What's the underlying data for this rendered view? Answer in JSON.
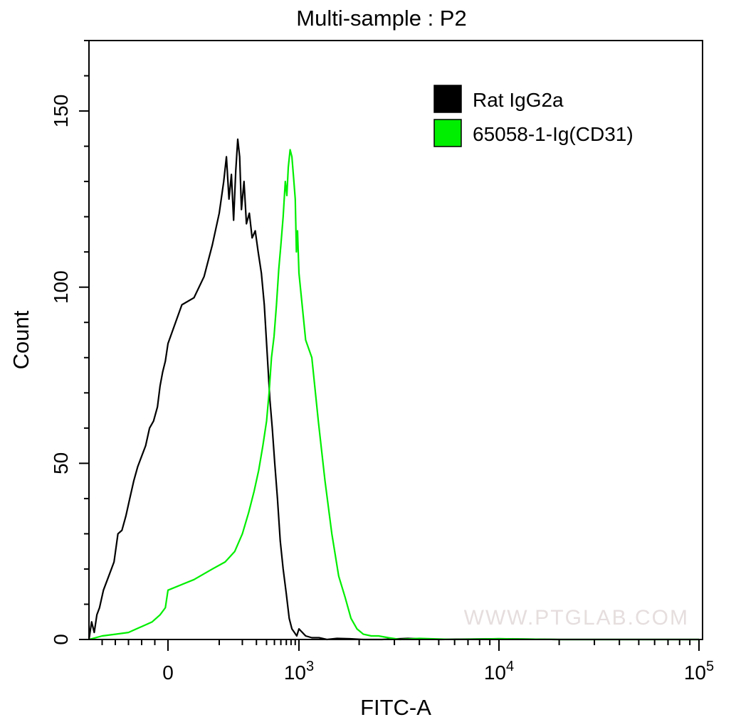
{
  "chart_data": {
    "type": "line",
    "title": "Multi-sample : P2",
    "xlabel": "FITC-A",
    "ylabel": "Count",
    "x_scale": "biexponential",
    "ylim": [
      0,
      170
    ],
    "y_ticks": [
      0,
      50,
      100,
      150
    ],
    "x_ticks": [
      {
        "value": 0,
        "label": "0",
        "exp": ""
      },
      {
        "value": 1000,
        "label": "10",
        "exp": "3"
      },
      {
        "value": 10000,
        "label": "10",
        "exp": "4"
      },
      {
        "value": 100000,
        "label": "10",
        "exp": "5"
      }
    ],
    "legend": {
      "position": "top-right"
    },
    "watermark": "WWW.PTGLAB.COM",
    "series": [
      {
        "name": "Rat IgG2a",
        "color": "#000000",
        "points": [
          [
            -600,
            0
          ],
          [
            -580,
            5
          ],
          [
            -560,
            2
          ],
          [
            -540,
            7
          ],
          [
            -520,
            9
          ],
          [
            -490,
            14
          ],
          [
            -450,
            18
          ],
          [
            -410,
            22
          ],
          [
            -380,
            30
          ],
          [
            -350,
            31
          ],
          [
            -320,
            35
          ],
          [
            -290,
            40
          ],
          [
            -260,
            45
          ],
          [
            -230,
            49
          ],
          [
            -200,
            52
          ],
          [
            -170,
            55
          ],
          [
            -140,
            60
          ],
          [
            -110,
            62
          ],
          [
            -80,
            66
          ],
          [
            -60,
            72
          ],
          [
            -40,
            76
          ],
          [
            -20,
            79
          ],
          [
            0,
            84
          ],
          [
            20,
            95
          ],
          [
            40,
            97
          ],
          [
            60,
            103
          ],
          [
            80,
            112
          ],
          [
            100,
            121
          ],
          [
            115,
            130
          ],
          [
            125,
            137
          ],
          [
            135,
            125
          ],
          [
            145,
            132
          ],
          [
            155,
            119
          ],
          [
            165,
            133
          ],
          [
            175,
            142
          ],
          [
            185,
            137
          ],
          [
            195,
            122
          ],
          [
            210,
            130
          ],
          [
            225,
            118
          ],
          [
            245,
            121
          ],
          [
            265,
            114
          ],
          [
            290,
            116
          ],
          [
            315,
            110
          ],
          [
            345,
            104
          ],
          [
            375,
            95
          ],
          [
            410,
            80
          ],
          [
            440,
            68
          ],
          [
            470,
            60
          ],
          [
            505,
            50
          ],
          [
            545,
            40
          ],
          [
            590,
            28
          ],
          [
            640,
            20
          ],
          [
            700,
            13
          ],
          [
            760,
            6
          ],
          [
            820,
            3
          ],
          [
            880,
            2
          ],
          [
            940,
            1
          ],
          [
            1000,
            3
          ],
          [
            1080,
            1
          ],
          [
            1160,
            0.5
          ],
          [
            1260,
            0.5
          ],
          [
            1380,
            0
          ],
          [
            1550,
            0.3
          ],
          [
            1800,
            0.2
          ],
          [
            2100,
            0
          ],
          [
            2600,
            0
          ],
          [
            3500,
            0.3
          ],
          [
            5000,
            0
          ],
          [
            10000,
            0.2
          ],
          [
            20000,
            0
          ],
          [
            40000,
            0
          ],
          [
            100000,
            0
          ]
        ]
      },
      {
        "name": "65058-1-Ig(CD31)",
        "color": "#00ee00",
        "points": [
          [
            -600,
            0
          ],
          [
            -500,
            1
          ],
          [
            -400,
            1.5
          ],
          [
            -300,
            2
          ],
          [
            -240,
            3
          ],
          [
            -180,
            4
          ],
          [
            -120,
            5
          ],
          [
            -60,
            7
          ],
          [
            -20,
            9
          ],
          [
            0,
            14
          ],
          [
            40,
            17
          ],
          [
            80,
            20
          ],
          [
            120,
            22
          ],
          [
            160,
            25
          ],
          [
            200,
            30
          ],
          [
            240,
            36
          ],
          [
            280,
            42
          ],
          [
            320,
            48
          ],
          [
            360,
            55
          ],
          [
            400,
            62
          ],
          [
            430,
            70
          ],
          [
            460,
            80
          ],
          [
            495,
            86
          ],
          [
            530,
            95
          ],
          [
            565,
            105
          ],
          [
            600,
            112
          ],
          [
            640,
            120
          ],
          [
            680,
            130
          ],
          [
            710,
            126
          ],
          [
            740,
            134
          ],
          [
            780,
            139
          ],
          [
            820,
            137
          ],
          [
            860,
            131
          ],
          [
            900,
            125
          ],
          [
            930,
            110
          ],
          [
            960,
            116
          ],
          [
            1000,
            104
          ],
          [
            1080,
            85
          ],
          [
            1160,
            80
          ],
          [
            1250,
            62
          ],
          [
            1350,
            45
          ],
          [
            1460,
            30
          ],
          [
            1580,
            18
          ],
          [
            1700,
            12
          ],
          [
            1820,
            6
          ],
          [
            1950,
            3
          ],
          [
            2100,
            1.5
          ],
          [
            2300,
            1
          ],
          [
            2500,
            1
          ],
          [
            2800,
            0.5
          ],
          [
            3200,
            0
          ],
          [
            4000,
            0.3
          ],
          [
            6000,
            0
          ],
          [
            10000,
            0.2
          ],
          [
            20000,
            0
          ],
          [
            50000,
            0
          ],
          [
            100000,
            0
          ]
        ]
      }
    ]
  }
}
